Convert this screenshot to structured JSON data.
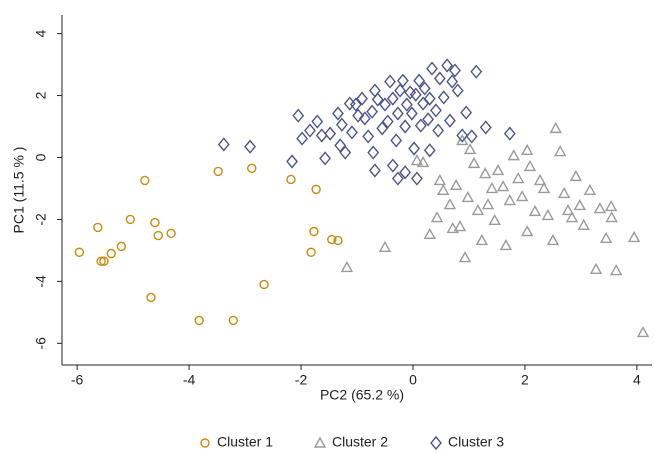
{
  "chart_data": {
    "type": "scatter",
    "x_label": "PC2 (65.2 %)",
    "y_label": "PC1 (11.5 % )",
    "xlim": [
      -6.27,
      4.27
    ],
    "ylim": [
      -6.7,
      4.6
    ],
    "xticks": [
      -6,
      -4,
      -2,
      0,
      2,
      4
    ],
    "yticks": [
      -6,
      -4,
      -2,
      0,
      2,
      4
    ],
    "grid": false,
    "legend": "bottom",
    "series": [
      {
        "name": "Cluster 1",
        "color": "#c98a12",
        "marker": "circle",
        "x": [
          -5.96,
          -5.63,
          -5.57,
          -5.52,
          -5.39,
          -5.21,
          -5.05,
          -4.79,
          -4.61,
          -4.55,
          -4.32,
          -4.68,
          -3.48,
          -3.82,
          -3.21,
          -2.88,
          -2.66,
          -2.18,
          -1.73,
          -1.77,
          -1.82,
          -1.45,
          -1.34
        ],
        "y": [
          -3.06,
          -2.26,
          -3.35,
          -3.35,
          -3.1,
          -2.87,
          -2.0,
          -0.74,
          -2.1,
          -2.52,
          -2.45,
          -4.52,
          -0.45,
          -5.26,
          -5.26,
          -0.35,
          -4.1,
          -0.71,
          -1.03,
          -2.39,
          -3.06,
          -2.65,
          -2.68
        ]
      },
      {
        "name": "Cluster 2",
        "color": "#9a9a9a",
        "marker": "triangle",
        "x": [
          -0.5,
          -1.18,
          0.07,
          0.18,
          0.48,
          0.43,
          0.54,
          0.66,
          0.77,
          0.84,
          0.93,
          0.98,
          1.09,
          1.16,
          1.23,
          1.29,
          1.34,
          1.41,
          1.46,
          1.52,
          1.61,
          1.66,
          1.73,
          1.8,
          1.88,
          1.95,
          2.04,
          2.09,
          2.18,
          2.27,
          2.34,
          2.41,
          2.5,
          2.55,
          2.63,
          2.7,
          2.77,
          2.84,
          2.91,
          2.98,
          3.05,
          3.16,
          3.27,
          3.34,
          3.45,
          3.54,
          3.63,
          3.95,
          4.11,
          1.02,
          0.88,
          2.04,
          0.71,
          0.3,
          3.55
        ],
        "y": [
          -2.9,
          -3.55,
          -0.1,
          -0.16,
          -0.74,
          -1.94,
          -1.06,
          -1.52,
          -0.9,
          -2.23,
          -3.23,
          -1.29,
          -0.19,
          -1.71,
          -2.68,
          -0.52,
          -1.52,
          -1.0,
          -2.03,
          -0.42,
          -0.94,
          -2.84,
          -1.39,
          0.06,
          -0.68,
          -1.26,
          -2.39,
          -0.29,
          -1.74,
          -0.74,
          -1.0,
          -1.87,
          -2.68,
          0.94,
          0.19,
          -1.16,
          -1.71,
          -1.94,
          -0.61,
          -1.55,
          -2.19,
          -1.06,
          -3.61,
          -1.65,
          -2.61,
          -1.58,
          -3.65,
          -2.58,
          -5.65,
          0.26,
          0.55,
          0.23,
          -2.29,
          -2.48,
          -1.94
        ]
      },
      {
        "name": "Cluster 3",
        "color": "#4e5688",
        "marker": "diamond",
        "x": [
          -3.38,
          -2.91,
          -2.16,
          -2.05,
          -1.98,
          -1.84,
          -1.71,
          -1.63,
          -1.57,
          -1.48,
          -1.34,
          -1.27,
          -1.21,
          -1.13,
          -1.09,
          -1.02,
          -0.98,
          -0.91,
          -0.86,
          -0.8,
          -0.73,
          -0.68,
          -0.63,
          -0.55,
          -0.5,
          -0.45,
          -0.41,
          -0.36,
          -0.3,
          -0.27,
          -0.23,
          -0.18,
          -0.14,
          -0.11,
          -0.05,
          -0.02,
          0.02,
          0.05,
          0.11,
          0.14,
          0.18,
          0.21,
          0.27,
          0.3,
          0.34,
          0.41,
          0.45,
          0.48,
          0.55,
          0.61,
          0.66,
          0.7,
          0.75,
          0.8,
          0.88,
          0.95,
          1.05,
          1.13,
          1.3,
          1.73,
          0.07,
          -0.27,
          -0.14,
          -0.36,
          -0.71,
          -1.3,
          -0.68,
          0.3
        ],
        "y": [
          0.42,
          0.35,
          -0.13,
          1.35,
          0.61,
          0.87,
          1.16,
          0.71,
          -0.03,
          0.77,
          1.42,
          1.06,
          0.16,
          1.74,
          0.81,
          1.71,
          1.35,
          1.9,
          1.26,
          0.68,
          1.48,
          2.16,
          1.87,
          0.94,
          1.71,
          1.16,
          2.45,
          1.9,
          0.55,
          1.42,
          2.16,
          2.48,
          1.0,
          1.71,
          2.1,
          1.42,
          0.29,
          2.03,
          2.48,
          1.03,
          1.74,
          2.23,
          1.23,
          1.9,
          2.87,
          1.52,
          0.87,
          2.55,
          1.94,
          2.97,
          1.19,
          2.45,
          2.81,
          2.16,
          0.71,
          1.45,
          0.68,
          2.77,
          0.97,
          0.77,
          -0.68,
          -0.68,
          -0.48,
          -0.26,
          0.16,
          0.39,
          -0.42,
          0.23
        ]
      }
    ]
  }
}
